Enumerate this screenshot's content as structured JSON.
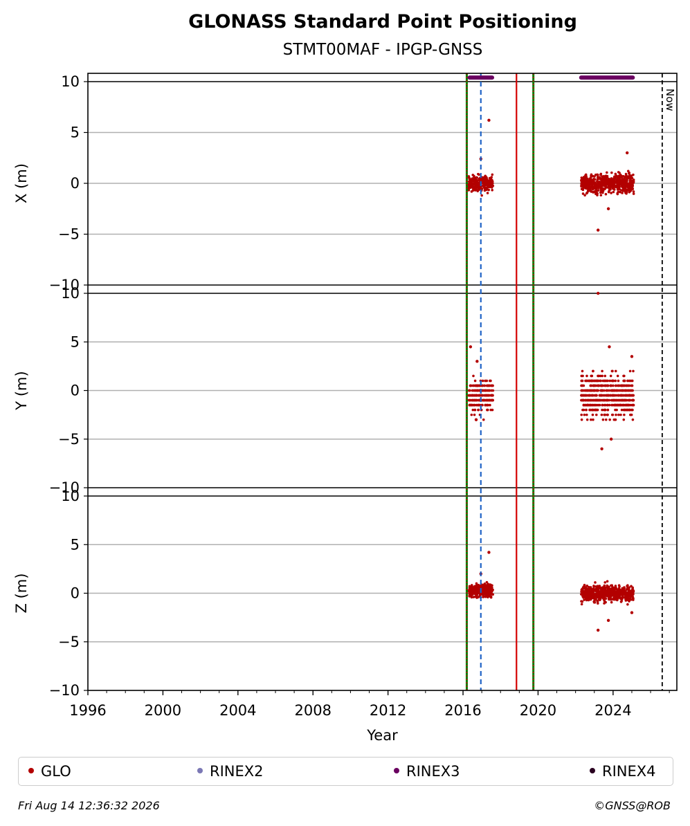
{
  "header": {
    "title": "GLONASS Standard Point Positioning",
    "subtitle": "STMT00MAF - IPGP-GNSS"
  },
  "chart_data": {
    "type": "scatter",
    "xlabel": "Year",
    "xlim": [
      1996,
      2027.4
    ],
    "x_ticks": [
      1996,
      2000,
      2004,
      2008,
      2012,
      2016,
      2020,
      2024
    ],
    "now_label": "Now",
    "now_year": 2026.62,
    "panels": [
      {
        "name": "x",
        "ylabel": "X (m)",
        "ylim": [
          -10,
          10
        ],
        "y_ticks": [
          10,
          5,
          0,
          -5,
          -10
        ],
        "clusters": [
          {
            "x_range": [
              2016.3,
              2017.6
            ],
            "y_center": 0,
            "y_spread": 1.2
          },
          {
            "x_range": [
              2022.3,
              2025.1
            ],
            "y_center": 0,
            "y_spread": 1.4
          }
        ],
        "outliers": [
          {
            "x": 2017.38,
            "y": 6.2
          },
          {
            "x": 2016.95,
            "y": 2.4
          },
          {
            "x": 2023.2,
            "y": -4.6
          },
          {
            "x": 2024.75,
            "y": 3.0
          },
          {
            "x": 2023.75,
            "y": -2.5
          }
        ]
      },
      {
        "name": "y",
        "ylabel": "Y (m)",
        "ylim": [
          -10,
          10
        ],
        "y_ticks": [
          10,
          5,
          0,
          -5,
          -10
        ],
        "clusters": [
          {
            "x_range": [
              2016.3,
              2017.6
            ],
            "y_center": -0.5,
            "y_spread": 2.2
          },
          {
            "x_range": [
              2022.3,
              2025.1
            ],
            "y_center": -0.5,
            "y_spread": 3.2
          }
        ],
        "outliers": [
          {
            "x": 2016.4,
            "y": 4.5
          },
          {
            "x": 2016.75,
            "y": 3.0
          },
          {
            "x": 2023.2,
            "y": 10.0
          },
          {
            "x": 2023.4,
            "y": -6.0
          },
          {
            "x": 2023.9,
            "y": -5.0
          },
          {
            "x": 2023.8,
            "y": 4.5
          },
          {
            "x": 2025.0,
            "y": 3.5
          },
          {
            "x": 2016.7,
            "y": -3.0
          }
        ]
      },
      {
        "name": "z",
        "ylabel": "Z (m)",
        "ylim": [
          -10,
          10
        ],
        "y_ticks": [
          10,
          5,
          0,
          -5,
          -10
        ],
        "clusters": [
          {
            "x_range": [
              2016.3,
              2017.6
            ],
            "y_center": 0.3,
            "y_spread": 1.0
          },
          {
            "x_range": [
              2022.3,
              2025.1
            ],
            "y_center": 0,
            "y_spread": 1.2
          }
        ],
        "outliers": [
          {
            "x": 2017.38,
            "y": 4.2
          },
          {
            "x": 2016.95,
            "y": 2.0
          },
          {
            "x": 2023.2,
            "y": -3.8
          },
          {
            "x": 2023.75,
            "y": -2.8
          },
          {
            "x": 2025.0,
            "y": -2.0
          }
        ]
      }
    ],
    "rinex_bars": [
      {
        "start": 2016.35,
        "end": 2017.55,
        "series": "RINEX3"
      },
      {
        "start": 2022.3,
        "end": 2025.05,
        "series": "RINEX3"
      }
    ],
    "vertical_lines": [
      {
        "x": 2016.2,
        "style": "green-red-dotted"
      },
      {
        "x": 2016.95,
        "style": "blue-dashed"
      },
      {
        "x": 2018.85,
        "style": "red-solid"
      },
      {
        "x": 2019.75,
        "style": "green-red-dotted"
      }
    ],
    "legend": [
      {
        "label": "GLO",
        "color": "#b30000"
      },
      {
        "label": "RINEX2",
        "color": "#7b78b5"
      },
      {
        "label": "RINEX3",
        "color": "#6a0060"
      },
      {
        "label": "RINEX4",
        "color": "#2a0020"
      }
    ]
  },
  "footer": {
    "timestamp": "Fri Aug 14 12:36:32 2026",
    "credit": "©GNSS@ROB"
  }
}
